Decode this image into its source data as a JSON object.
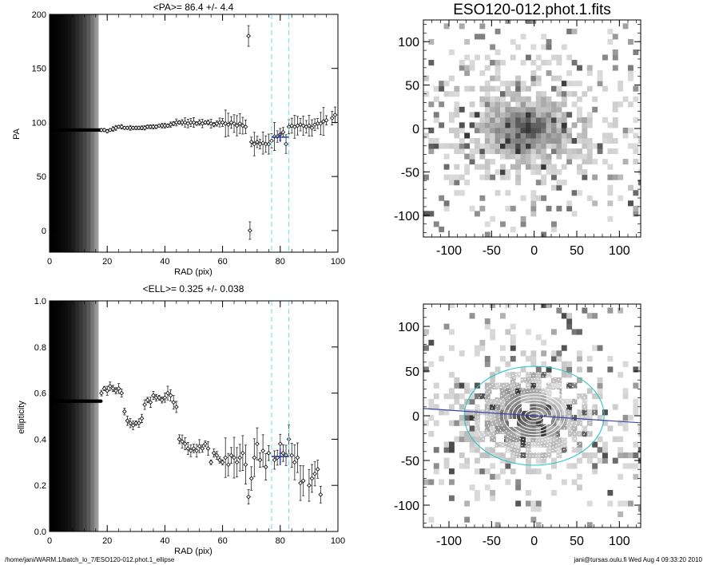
{
  "main_title": "ESO120-012.phot.1.fits",
  "footer": {
    "left": "/home/jani/WARM.1/batch_lo_7/ESO120-012.phot.1_ellipse",
    "right": "jani@tursas.oulu.fi  Wed Aug  4 09:33:20 2010"
  },
  "chart_data": [
    {
      "type": "scatter",
      "title": "<PA>=  86.4 +/-   4.4",
      "xlabel": "RAD (pix)",
      "ylabel": "PA",
      "xlim": [
        0,
        100
      ],
      "ylim": [
        -20,
        200
      ],
      "xticks": [
        "0",
        "20",
        "40",
        "60",
        "80",
        "100"
      ],
      "yticks": [
        "0",
        "50",
        "100",
        "150",
        "200"
      ],
      "mean_value": 86.4,
      "mean_error": 4.4,
      "mean_range": [
        77,
        83
      ],
      "vlines": [
        77,
        83
      ],
      "shaded_region": [
        0,
        17
      ],
      "points": [
        [
          18,
          93
        ],
        [
          19,
          93
        ],
        [
          20,
          92
        ],
        [
          21,
          93
        ],
        [
          22,
          94
        ],
        [
          23,
          95
        ],
        [
          24,
          96
        ],
        [
          25,
          96
        ],
        [
          26,
          95
        ],
        [
          27,
          95
        ],
        [
          28,
          95
        ],
        [
          29,
          95
        ],
        [
          30,
          95
        ],
        [
          31,
          95
        ],
        [
          32,
          95
        ],
        [
          33,
          95
        ],
        [
          34,
          96
        ],
        [
          35,
          96
        ],
        [
          36,
          96
        ],
        [
          37,
          96
        ],
        [
          38,
          97
        ],
        [
          39,
          97
        ],
        [
          40,
          97
        ],
        [
          41,
          97
        ],
        [
          42,
          98
        ],
        [
          43,
          99
        ],
        [
          44,
          100
        ],
        [
          45,
          100
        ],
        [
          46,
          100
        ],
        [
          47,
          100
        ],
        [
          48,
          99
        ],
        [
          49,
          100
        ],
        [
          50,
          100
        ],
        [
          51,
          99
        ],
        [
          52,
          100
        ],
        [
          53,
          99
        ],
        [
          54,
          100
        ],
        [
          55,
          100
        ],
        [
          56,
          99
        ],
        [
          57,
          98
        ],
        [
          58,
          99
        ],
        [
          59,
          100
        ],
        [
          60,
          100
        ],
        [
          61,
          99
        ],
        [
          62,
          98
        ],
        [
          63,
          100
        ],
        [
          64,
          99
        ],
        [
          65,
          97
        ],
        [
          66,
          99
        ],
        [
          67,
          97
        ],
        [
          68,
          96
        ],
        [
          69,
          180
        ],
        [
          69.5,
          0
        ],
        [
          70,
          82
        ],
        [
          71,
          80
        ],
        [
          72,
          82
        ],
        [
          73,
          80
        ],
        [
          74,
          81
        ],
        [
          75,
          80
        ],
        [
          76,
          80
        ],
        [
          77,
          83
        ],
        [
          78,
          87
        ],
        [
          79,
          87
        ],
        [
          80,
          89
        ],
        [
          81,
          91
        ],
        [
          82,
          80
        ],
        [
          83,
          96
        ],
        [
          84,
          97
        ],
        [
          85,
          96
        ],
        [
          86,
          97
        ],
        [
          87,
          98
        ],
        [
          88,
          97
        ],
        [
          89,
          96
        ],
        [
          90,
          97
        ],
        [
          91,
          95
        ],
        [
          92,
          98
        ],
        [
          93,
          99
        ],
        [
          94,
          99
        ],
        [
          95,
          101
        ],
        [
          96,
          102
        ],
        [
          98,
          104
        ],
        [
          99,
          107
        ]
      ]
    },
    {
      "type": "scatter",
      "title": "<ELL>= 0.325 +/-  0.038",
      "xlabel": "RAD (pix)",
      "ylabel": "ellipticity",
      "xlim": [
        0,
        100
      ],
      "ylim": [
        0,
        1
      ],
      "xticks": [
        "0",
        "20",
        "40",
        "60",
        "80",
        "100"
      ],
      "yticks": [
        "0.0",
        "0.2",
        "0.4",
        "0.6",
        "0.8",
        "1.0"
      ],
      "mean_value": 0.325,
      "mean_error": 0.038,
      "mean_range": [
        77,
        83
      ],
      "vlines": [
        77,
        83
      ],
      "shaded_region": [
        0,
        17
      ],
      "points": [
        [
          18,
          0.6
        ],
        [
          19,
          0.62
        ],
        [
          20,
          0.61
        ],
        [
          21,
          0.63
        ],
        [
          22,
          0.62
        ],
        [
          23,
          0.61
        ],
        [
          24,
          0.62
        ],
        [
          25,
          0.6
        ],
        [
          26,
          0.52
        ],
        [
          27,
          0.48
        ],
        [
          28,
          0.47
        ],
        [
          29,
          0.46
        ],
        [
          30,
          0.47
        ],
        [
          31,
          0.47
        ],
        [
          32,
          0.49
        ],
        [
          33,
          0.55
        ],
        [
          34,
          0.57
        ],
        [
          35,
          0.56
        ],
        [
          36,
          0.59
        ],
        [
          37,
          0.58
        ],
        [
          38,
          0.58
        ],
        [
          39,
          0.57
        ],
        [
          40,
          0.58
        ],
        [
          41,
          0.6
        ],
        [
          42,
          0.59
        ],
        [
          43,
          0.56
        ],
        [
          44,
          0.54
        ],
        [
          45,
          0.4
        ],
        [
          46,
          0.39
        ],
        [
          47,
          0.38
        ],
        [
          48,
          0.36
        ],
        [
          49,
          0.35
        ],
        [
          50,
          0.36
        ],
        [
          51,
          0.35
        ],
        [
          52,
          0.37
        ],
        [
          53,
          0.36
        ],
        [
          54,
          0.38
        ],
        [
          55,
          0.36
        ],
        [
          56,
          0.3
        ],
        [
          57,
          0.34
        ],
        [
          58,
          0.33
        ],
        [
          59,
          0.31
        ],
        [
          60,
          0.3
        ],
        [
          61,
          0.32
        ],
        [
          62,
          0.29
        ],
        [
          63,
          0.33
        ],
        [
          64,
          0.32
        ],
        [
          65,
          0.3
        ],
        [
          66,
          0.32
        ],
        [
          67,
          0.34
        ],
        [
          68,
          0.29
        ],
        [
          69,
          0.15
        ],
        [
          70,
          0.23
        ],
        [
          71,
          0.32
        ],
        [
          72,
          0.38
        ],
        [
          73,
          0.31
        ],
        [
          74,
          0.35
        ],
        [
          75,
          0.28
        ],
        [
          76,
          0.34
        ],
        [
          78,
          0.31
        ],
        [
          79,
          0.32
        ],
        [
          80,
          0.38
        ],
        [
          81,
          0.34
        ],
        [
          82,
          0.33
        ],
        [
          83,
          0.4
        ],
        [
          84,
          0.33
        ],
        [
          85,
          0.3
        ],
        [
          86,
          0.32
        ],
        [
          87,
          0.21
        ],
        [
          88,
          0.22
        ],
        [
          90,
          0.2
        ],
        [
          91,
          0.23
        ],
        [
          92,
          0.25
        ],
        [
          93,
          0.27
        ],
        [
          94,
          0.16
        ]
      ]
    },
    {
      "type": "heatmap",
      "title": "ESO120-012.phot.1.fits",
      "xlim": [
        -130,
        125
      ],
      "ylim": [
        -125,
        125
      ],
      "xticks": [
        "-100",
        "-50",
        "0",
        "50",
        "100"
      ],
      "yticks": [
        "-100",
        "-50",
        "0",
        "50",
        "100"
      ],
      "galaxy_center": [
        -10,
        0
      ]
    },
    {
      "type": "heatmap",
      "title": "",
      "xlim": [
        -130,
        125
      ],
      "ylim": [
        -125,
        125
      ],
      "xticks": [
        "-100",
        "-50",
        "0",
        "50",
        "100"
      ],
      "yticks": [
        "-100",
        "-50",
        "0",
        "50",
        "100"
      ],
      "ellipse_pa_deg": 86.4,
      "ellipse_ell": 0.325,
      "outer_ellipse_a": 82,
      "colors": {
        "axis_line": "#3d44a8",
        "outer_ellipse": "#2ec4c4",
        "mean_bar": "#2a3a9e",
        "vline": "#66e0e6"
      }
    }
  ]
}
